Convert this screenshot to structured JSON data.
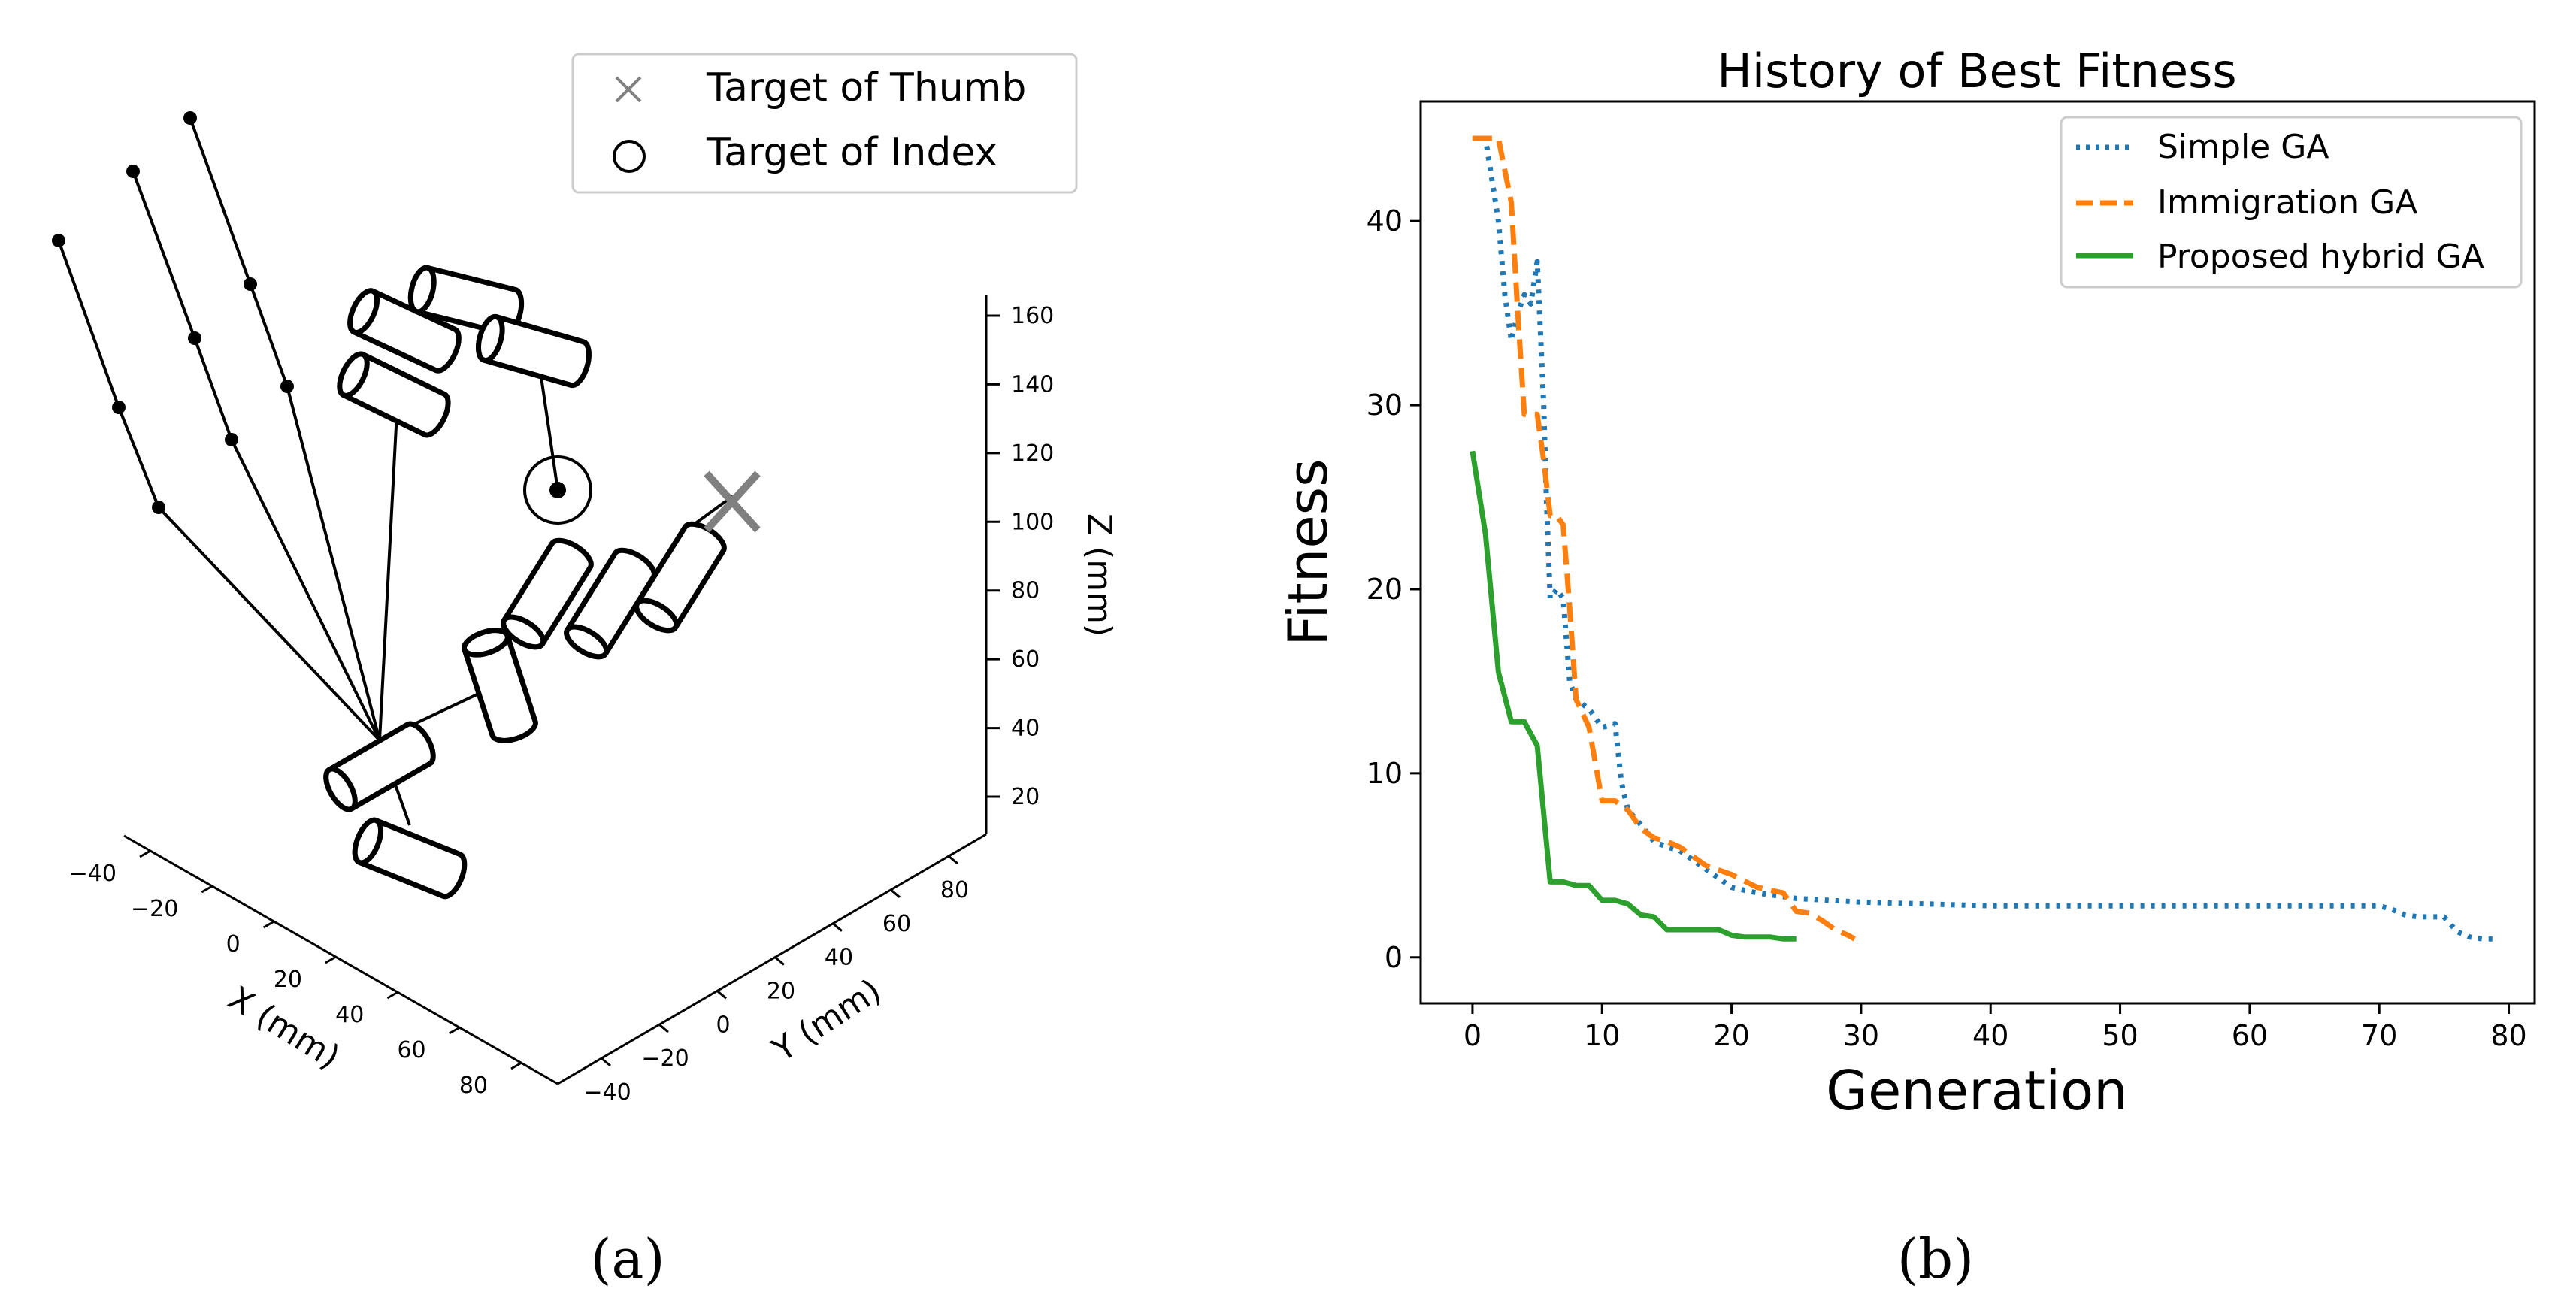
{
  "chart_data": [
    {
      "id": "a",
      "type": "scatter",
      "subtype": "3d-finger-kinematics",
      "caption": "(a)",
      "legend": {
        "placement": "top-right",
        "entries": [
          {
            "label": "Target of Thumb",
            "marker": "x",
            "color": "#808080"
          },
          {
            "label": "Target of Index",
            "marker": "o",
            "color": "#000000"
          }
        ]
      },
      "axes": {
        "x": {
          "label": "X (mm)",
          "ticks": [
            "−40",
            "−20",
            "0",
            "20",
            "40",
            "60",
            "80"
          ]
        },
        "y": {
          "label": "Y (mm)",
          "ticks": [
            "−40",
            "−20",
            "0",
            "20",
            "40",
            "60",
            "80"
          ]
        },
        "z": {
          "label": "Z (mm)",
          "ticks": [
            "20",
            "40",
            "60",
            "80",
            "100",
            "120",
            "140",
            "160"
          ]
        }
      }
    },
    {
      "id": "b",
      "type": "line",
      "caption": "(b)",
      "title": "History of Best Fitness",
      "xlabel": "Generation",
      "ylabel": "Fitness",
      "xlim": [
        -4,
        82
      ],
      "ylim": [
        -2.5,
        46.5
      ],
      "xticks": [
        0,
        10,
        20,
        30,
        40,
        50,
        60,
        70,
        80
      ],
      "yticks": [
        0,
        10,
        20,
        30,
        40
      ],
      "legend_placement": "top-right",
      "series": [
        {
          "name": "Simple GA",
          "color": "#1f77b4",
          "style": "dotted",
          "x": [
            0,
            1,
            2,
            2.5,
            3,
            3.5,
            4,
            4.5,
            5,
            5.5,
            5.7,
            6,
            6.5,
            7,
            7.5,
            8,
            9,
            10,
            11,
            11.5,
            12,
            13,
            14,
            15,
            16,
            18,
            20,
            22,
            25,
            30,
            40,
            50,
            60,
            70,
            71,
            72,
            73,
            74,
            75,
            76,
            77,
            78,
            79
          ],
          "y": [
            44.5,
            44.5,
            40,
            36,
            33.5,
            35,
            36,
            35.5,
            37.8,
            30,
            25,
            19.5,
            20,
            19.5,
            15,
            14,
            13.5,
            12.5,
            12.7,
            9.5,
            8,
            7.2,
            6.3,
            6,
            5.8,
            4.8,
            3.8,
            3.5,
            3.2,
            3.0,
            2.8,
            2.8,
            2.8,
            2.8,
            2.6,
            2.3,
            2.2,
            2.2,
            2.2,
            1.4,
            1.1,
            1.0,
            1.0
          ]
        },
        {
          "name": "Immigration GA",
          "color": "#ff7f0e",
          "style": "dashed",
          "x": [
            0,
            2,
            3,
            3.5,
            4,
            5,
            5.5,
            6,
            6.5,
            7,
            7.5,
            8,
            9,
            10,
            11,
            12,
            13,
            14,
            15,
            16,
            17,
            18,
            20,
            22,
            24,
            25,
            26,
            27,
            28,
            29,
            29.5
          ],
          "y": [
            44.5,
            44.5,
            41,
            35,
            29.5,
            29.5,
            27,
            24,
            24,
            23.5,
            19,
            14,
            12.5,
            8.5,
            8.5,
            8,
            7,
            6.5,
            6.3,
            6.0,
            5.5,
            5.0,
            4.5,
            3.8,
            3.5,
            2.5,
            2.4,
            2.0,
            1.5,
            1.2,
            1.0
          ]
        },
        {
          "name": "Proposed hybrid GA",
          "color": "#2ca02c",
          "style": "solid",
          "x": [
            0,
            1,
            2,
            3,
            4,
            5,
            6,
            7,
            8,
            9,
            10,
            11,
            12,
            13,
            14,
            15,
            16,
            17,
            18,
            19,
            20,
            21,
            22,
            23,
            24,
            25
          ],
          "y": [
            27.5,
            23,
            15.5,
            12.8,
            12.8,
            11.5,
            4.1,
            4.1,
            3.9,
            3.9,
            3.1,
            3.1,
            2.9,
            2.3,
            2.2,
            1.5,
            1.5,
            1.5,
            1.5,
            1.5,
            1.2,
            1.1,
            1.1,
            1.1,
            1.0,
            1.0
          ]
        }
      ]
    }
  ]
}
